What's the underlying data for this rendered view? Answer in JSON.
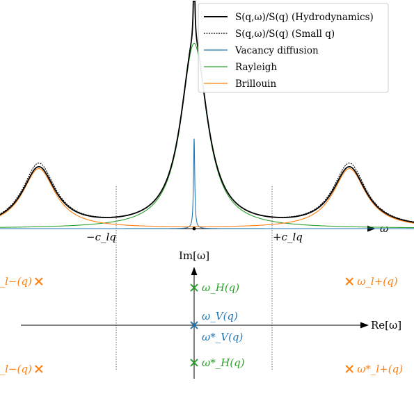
{
  "chart_data": {
    "type": "line",
    "x_axis_label": "ω",
    "x_tick_labels": [
      "−c_lq",
      "+c_lq"
    ],
    "legend": {
      "placement": "top-right",
      "entries": [
        {
          "id": "hydro",
          "label": "S(q,ω)/S(q) (Hydrodynamics)",
          "color": "#000000",
          "style": "solid"
        },
        {
          "id": "smallq",
          "label": "S(q,ω)/S(q) (Small q)",
          "color": "#000000",
          "style": "dotted"
        },
        {
          "id": "vacancy",
          "label": "Vacancy diffusion",
          "color": "#1f77b4",
          "style": "solid"
        },
        {
          "id": "rayleigh",
          "label": "Rayleigh",
          "color": "#2ca02c",
          "style": "solid"
        },
        {
          "id": "brillouin",
          "label": "Brillouin",
          "color": "#ff7f0e",
          "style": "solid"
        }
      ]
    },
    "params": {
      "omega_range": [
        -1.95,
        1.95
      ],
      "brillouin_peak": 0.93,
      "brillouin_width": 0.12,
      "brillouin_amp": 0.2,
      "rayleigh_width": 0.095,
      "rayleigh_amp": 0.62,
      "vacancy_width": 0.0045,
      "vacancy_amp": 0.3
    }
  },
  "complex_plane": {
    "re_axis_label": "Re[ω]",
    "im_axis_label": "Im[ω]",
    "poles": [
      {
        "id": "l-minus",
        "label": "ω_l−(q)",
        "color": "#ff7f0e",
        "re": -0.93,
        "im": 0.9,
        "side": "left"
      },
      {
        "id": "h",
        "label": "ω_H(q)",
        "color": "#2ca02c",
        "re": 0.0,
        "im": 0.77,
        "side": "right"
      },
      {
        "id": "l-plus",
        "label": "ω_l+(q)",
        "color": "#ff7f0e",
        "re": 0.93,
        "im": 0.9,
        "side": "right"
      },
      {
        "id": "v",
        "label": "ω_V(q)",
        "color": "#1f77b4",
        "re": 0.0,
        "im": 0.0,
        "side": "right-up"
      },
      {
        "id": "v-star",
        "label": "ω*_V(q)",
        "color": "#1f77b4",
        "re": 0.0,
        "im": -0.02,
        "side": "right-down"
      },
      {
        "id": "l-minus-star",
        "label": "ω*_l−(q)",
        "color": "#ff7f0e",
        "re": -0.93,
        "im": -0.9,
        "side": "left"
      },
      {
        "id": "h-star",
        "label": "ω*_H(q)",
        "color": "#2ca02c",
        "re": 0.0,
        "im": -0.77,
        "side": "right"
      },
      {
        "id": "l-plus-star",
        "label": "ω*_l+(q)",
        "color": "#ff7f0e",
        "re": 0.93,
        "im": -0.9,
        "side": "right"
      }
    ]
  }
}
